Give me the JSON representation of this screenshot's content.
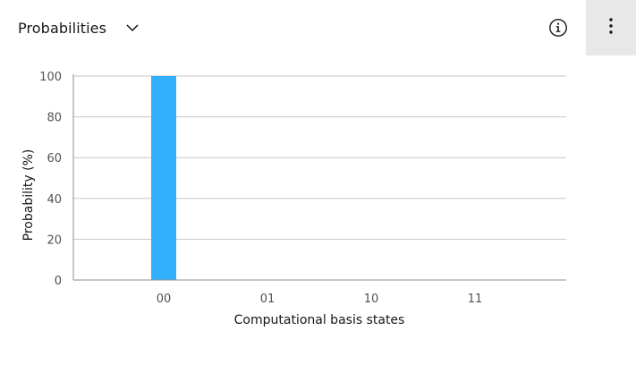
{
  "header": {
    "title": "Probabilities",
    "dropdown_icon": "chevron-down-icon",
    "info_icon": "information-icon",
    "menu_icon": "overflow-menu-vertical-icon"
  },
  "colors": {
    "bar": "#33b1ff",
    "grid": "#c6c6c6",
    "axis": "#8d8d8d",
    "menu_bg": "#e8e8e8"
  },
  "chart_data": {
    "type": "bar",
    "categories": [
      "00",
      "01",
      "10",
      "11"
    ],
    "values": [
      100,
      0,
      0,
      0
    ],
    "xlabel": "Computational basis states",
    "ylabel": "Probability (%)",
    "ylim": [
      0,
      100
    ],
    "yticks": [
      "0",
      "20",
      "40",
      "60",
      "80",
      "100"
    ],
    "grid": true,
    "legend": "none"
  }
}
